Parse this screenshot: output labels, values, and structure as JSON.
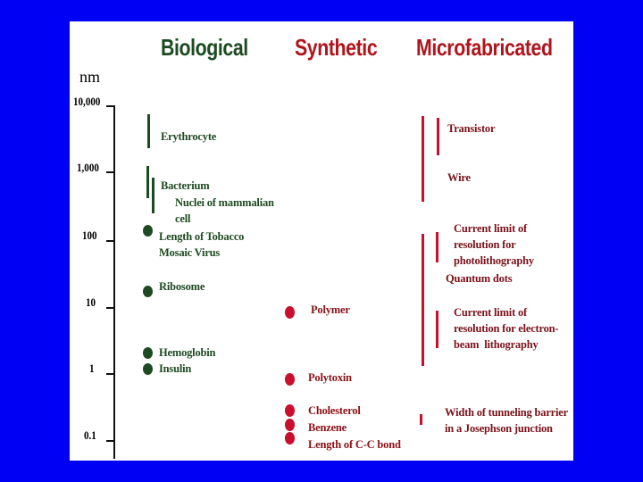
{
  "columns": {
    "biological": "Biological",
    "synthetic": "Synthetic",
    "microfabricated": "Microfabricated"
  },
  "axis": {
    "unit": "nm",
    "ticks": [
      "10,000",
      "1,000",
      "100",
      "10",
      "1",
      "0.1"
    ]
  },
  "biological_items": {
    "erythrocyte": "Erythrocyte",
    "bacterium": "Bacterium",
    "nuclei": "Nuclei of mammalian\ncell",
    "tobacco": "Length of Tobacco\nMosaic Virus",
    "ribosome": "Ribosome",
    "hemoglobin": "Hemoglobin",
    "insulin": "Insulin"
  },
  "synthetic_items": {
    "polymer": "Polymer",
    "polytoxin": "Polytoxin",
    "cholesterol": "Cholesterol",
    "benzene": "Benzene",
    "cc_bond": "Length of C-C bond"
  },
  "microfabricated_items": {
    "transistor": "Transistor",
    "wire": "Wire",
    "photolithography": "Current limit of\nresolution for\nphotolithography",
    "quantum_dots": "Quantum dots",
    "electron_beam": "Current limit of\nresolution for electron-\nbeam  lithography",
    "josephson": "Width of tunneling barrier\nin a Josephson junction"
  },
  "colors": {
    "background": "#0000f5",
    "biological": "#1d4a22",
    "synthetic": "#c8102e",
    "microfabricated": "#c8102e",
    "synthetic_title": "#b0141c",
    "microfabricated_title": "#b0141c"
  }
}
